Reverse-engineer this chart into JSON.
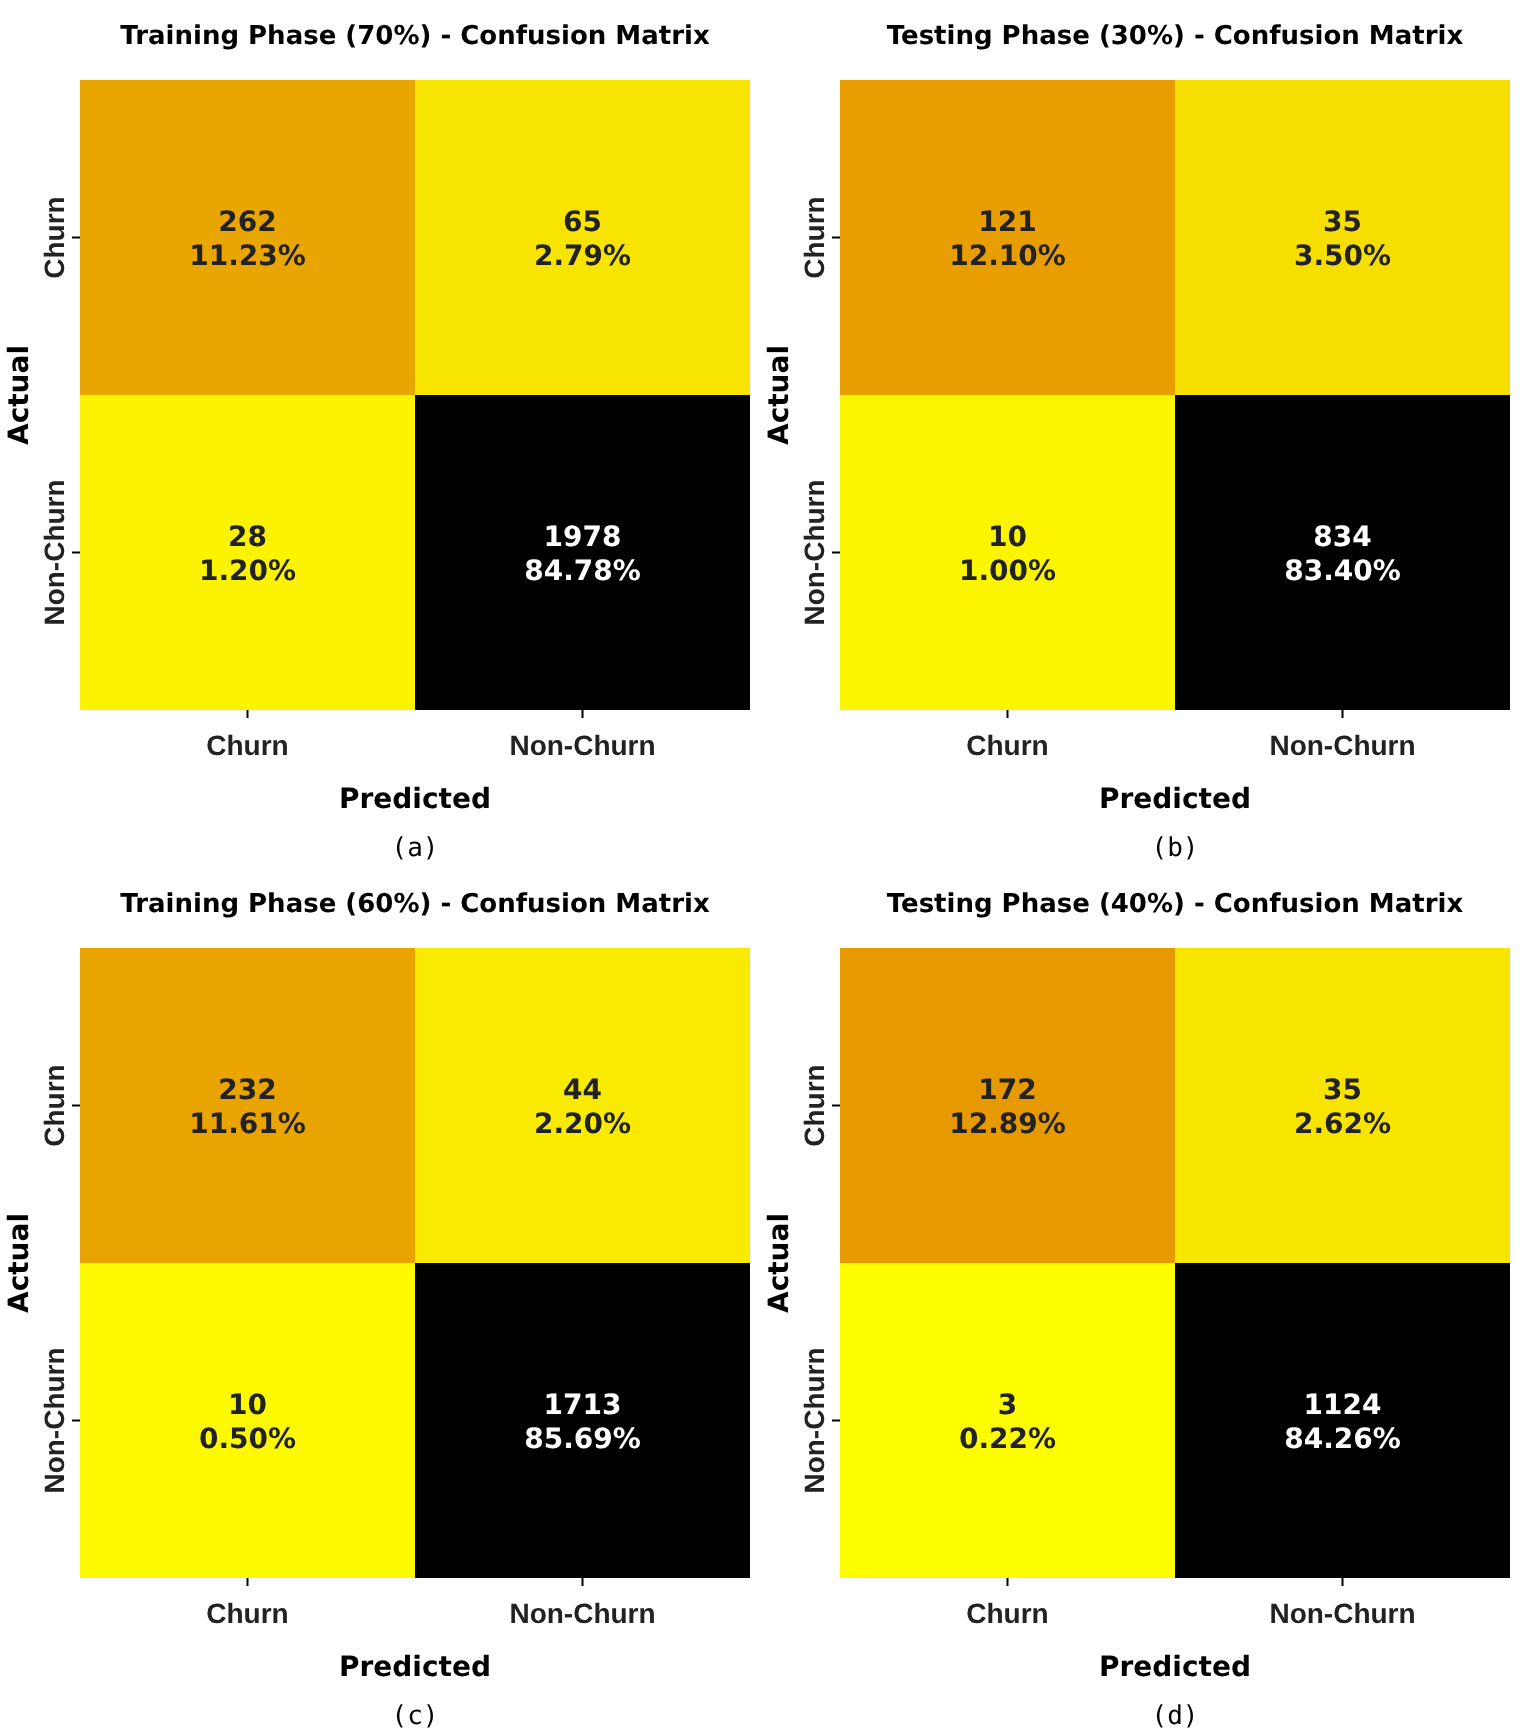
{
  "chart_data": [
    {
      "type": "heatmap",
      "title": "Training Phase (70%) - Confusion Matrix",
      "xlabel": "Predicted",
      "ylabel": "Actual",
      "categories": [
        "Churn",
        "Non-Churn"
      ],
      "y_categories": [
        "Churn",
        "Non-Churn"
      ],
      "cells": [
        [
          262,
          65
        ],
        [
          28,
          1978
        ]
      ],
      "data_labels": true,
      "annotations": [
        "(a)",
        "11.23%",
        "2.79%",
        "1.20%",
        "84.78%"
      ]
    },
    {
      "type": "heatmap",
      "title": "Testing Phase (30%) - Confusion Matrix",
      "xlabel": "Predicted",
      "ylabel": "Actual",
      "categories": [
        "Churn",
        "Non-Churn"
      ],
      "y_categories": [
        "Churn",
        "Non-Churn"
      ],
      "cells": [
        [
          121,
          35
        ],
        [
          10,
          834
        ]
      ],
      "data_labels": true,
      "annotations": [
        "(b)",
        "12.10%",
        "3.50%",
        "1.00%",
        "83.40%"
      ]
    },
    {
      "type": "heatmap",
      "title": "Training Phase (60%) - Confusion Matrix",
      "xlabel": "Predicted",
      "ylabel": "Actual",
      "categories": [
        "Churn",
        "Non-Churn"
      ],
      "y_categories": [
        "Churn",
        "Non-Churn"
      ],
      "cells": [
        [
          232,
          44
        ],
        [
          10,
          1713
        ]
      ],
      "data_labels": true,
      "annotations": [
        "(c)",
        "11.61%",
        "2.20%",
        "0.50%",
        "85.69%"
      ]
    },
    {
      "type": "heatmap",
      "title": "Testing Phase (40%) - Confusion Matrix",
      "xlabel": "Predicted",
      "ylabel": "Actual",
      "categories": [
        "Churn",
        "Non-Churn"
      ],
      "y_categories": [
        "Churn",
        "Non-Churn"
      ],
      "cells": [
        [
          172,
          35
        ],
        [
          3,
          1124
        ]
      ],
      "data_labels": true,
      "annotations": [
        "(d)",
        "12.89%",
        "2.62%",
        "0.22%",
        "84.26%"
      ]
    }
  ]
}
